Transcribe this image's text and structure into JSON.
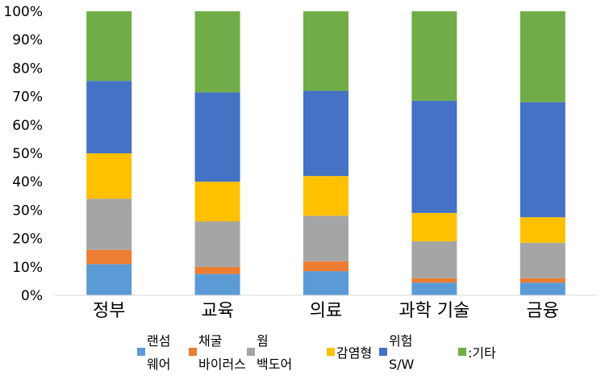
{
  "chart_data": {
    "type": "bar",
    "stacked": true,
    "percent": true,
    "categories": [
      "정부",
      "교육",
      "의료",
      "과학 기술",
      "금융"
    ],
    "y_ticks": [
      "0%",
      "10%",
      "20%",
      "30%",
      "40%",
      "50%",
      "60%",
      "70%",
      "80%",
      "90%",
      "100%"
    ],
    "ylim": [
      0,
      100
    ],
    "grid": false,
    "legend_position": "bottom",
    "series": [
      {
        "name": "랜섬웨어",
        "legend_lines": [
          "랜섬",
          "웨어"
        ],
        "color": "#5B9BD5",
        "values": [
          11,
          7.5,
          8.5,
          4.5,
          4.5
        ]
      },
      {
        "name": "채굴 바이러스",
        "legend_lines": [
          "채굴",
          "바이러스"
        ],
        "color": "#ED7D31",
        "values": [
          5,
          2.5,
          3.5,
          1.5,
          1.5
        ]
      },
      {
        "name": "웜 백도어",
        "legend_lines": [
          "웜",
          "백도어"
        ],
        "color": "#A5A5A5",
        "values": [
          18,
          16,
          16,
          13,
          12.5
        ]
      },
      {
        "name": "감염형",
        "legend_lines": [
          "감염형"
        ],
        "color": "#FFC000",
        "values": [
          16,
          14,
          14,
          10,
          9
        ]
      },
      {
        "name": "위험 S/W",
        "legend_lines": [
          "위험",
          "S/W"
        ],
        "color": "#4472C4",
        "values": [
          25.5,
          31.5,
          30,
          39.5,
          40.5
        ]
      },
      {
        "name": ":기타",
        "legend_lines": [
          ":기타"
        ],
        "color": "#70AD47",
        "values": [
          24.5,
          28.5,
          28,
          31.5,
          32
        ]
      }
    ]
  }
}
